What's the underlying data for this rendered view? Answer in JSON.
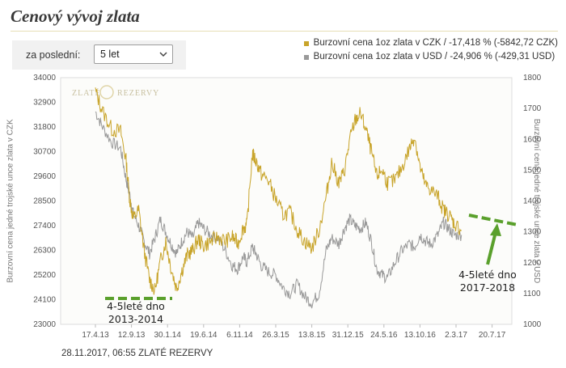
{
  "title": "Cenový vývoj zlata",
  "period": {
    "label": "za poslední:",
    "value": "5 let"
  },
  "legend": [
    {
      "text": "Burzovní cena 1oz zlata v CZK / -17,418 % (-5842,72 CZK)",
      "color": "#c8a42a"
    },
    {
      "text": "Burzovní cena 1oz zlata v USD / -24,906 % (-429,31 USD)",
      "color": "#999999"
    }
  ],
  "footer": "28.11.2017, 06:55 ZLATÉ REZERVY",
  "watermark": {
    "left": "ZLATÉ",
    "right": "REZERVY"
  },
  "colors": {
    "czk": "#c8a42a",
    "usd": "#999999",
    "annotation": "#5aa02c"
  },
  "chart_data": {
    "type": "line",
    "y_left_label": "Burzovní cena jedné trojské unce zlata v CZK",
    "y_right_label": "Burzovní cena jedné trojské unce zlata v USD",
    "y_left_ticks": [
      "34000",
      "32900",
      "31800",
      "30700",
      "29600",
      "28500",
      "27400",
      "26300",
      "25200",
      "24100",
      "23000"
    ],
    "y_right_ticks": [
      "1800",
      "1700",
      "1600",
      "1500",
      "1400",
      "1300",
      "1200",
      "1100",
      "1000"
    ],
    "x_ticks": [
      "17.4.13",
      "12.9.13",
      "30.1.14",
      "19.6.14",
      "6.11.14",
      "26.3.15",
      "13.8.15",
      "31.12.15",
      "24.5.16",
      "13.10.16",
      "2.3.17",
      "20.7.17"
    ],
    "ylim_left": [
      23000,
      34000
    ],
    "ylim_right": [
      1000,
      1800
    ],
    "series": [
      {
        "name": "Burzovní cena 1oz zlata v CZK",
        "axis": "left",
        "points": [
          [
            0,
            33400
          ],
          [
            0.2,
            32500
          ],
          [
            0.45,
            31700
          ],
          [
            0.7,
            31600
          ],
          [
            0.85,
            30300
          ],
          [
            0.95,
            28600
          ],
          [
            1.05,
            27700
          ],
          [
            1.2,
            28100
          ],
          [
            1.35,
            26300
          ],
          [
            1.5,
            25000
          ],
          [
            1.65,
            24500
          ],
          [
            1.8,
            25800
          ],
          [
            1.95,
            26700
          ],
          [
            2.1,
            25500
          ],
          [
            2.25,
            24600
          ],
          [
            2.4,
            25400
          ],
          [
            2.55,
            26100
          ],
          [
            2.7,
            26300
          ],
          [
            2.85,
            26800
          ],
          [
            3.0,
            26500
          ],
          [
            3.2,
            26700
          ],
          [
            3.4,
            26900
          ],
          [
            3.6,
            26700
          ],
          [
            3.8,
            26900
          ],
          [
            3.95,
            26600
          ],
          [
            4.1,
            27300
          ],
          [
            4.2,
            27400
          ],
          [
            4.35,
            30600
          ],
          [
            4.45,
            30300
          ],
          [
            4.6,
            29700
          ],
          [
            4.8,
            29400
          ],
          [
            5.0,
            28600
          ],
          [
            5.2,
            27900
          ],
          [
            5.4,
            28000
          ],
          [
            5.6,
            27200
          ],
          [
            5.8,
            26700
          ],
          [
            6.0,
            26400
          ],
          [
            6.2,
            27200
          ],
          [
            6.4,
            28700
          ],
          [
            6.55,
            30200
          ],
          [
            6.75,
            29300
          ],
          [
            6.9,
            29800
          ],
          [
            7.05,
            31200
          ],
          [
            7.2,
            32100
          ],
          [
            7.35,
            32400
          ],
          [
            7.5,
            31700
          ],
          [
            7.65,
            30700
          ],
          [
            7.8,
            29600
          ],
          [
            7.95,
            29900
          ],
          [
            8.1,
            29300
          ],
          [
            8.3,
            29400
          ],
          [
            8.5,
            30000
          ],
          [
            8.7,
            30800
          ],
          [
            8.85,
            31400
          ],
          [
            9.0,
            30000
          ],
          [
            9.15,
            29200
          ],
          [
            9.3,
            29000
          ],
          [
            9.5,
            28700
          ],
          [
            9.65,
            28100
          ],
          [
            9.8,
            27900
          ],
          [
            9.95,
            27500
          ],
          [
            10.15,
            27200
          ]
        ]
      },
      {
        "name": "Burzovní cena 1oz zlata v USD",
        "axis": "right",
        "points": [
          [
            0,
            1690
          ],
          [
            0.2,
            1640
          ],
          [
            0.45,
            1590
          ],
          [
            0.7,
            1570
          ],
          [
            0.85,
            1470
          ],
          [
            0.95,
            1420
          ],
          [
            1.05,
            1360
          ],
          [
            1.2,
            1320
          ],
          [
            1.35,
            1270
          ],
          [
            1.5,
            1230
          ],
          [
            1.65,
            1280
          ],
          [
            1.8,
            1340
          ],
          [
            1.95,
            1300
          ],
          [
            2.1,
            1260
          ],
          [
            2.25,
            1230
          ],
          [
            2.4,
            1270
          ],
          [
            2.55,
            1300
          ],
          [
            2.7,
            1280
          ],
          [
            2.85,
            1330
          ],
          [
            3.0,
            1310
          ],
          [
            3.2,
            1290
          ],
          [
            3.4,
            1280
          ],
          [
            3.6,
            1240
          ],
          [
            3.8,
            1190
          ],
          [
            3.95,
            1180
          ],
          [
            4.1,
            1220
          ],
          [
            4.2,
            1200
          ],
          [
            4.35,
            1250
          ],
          [
            4.45,
            1230
          ],
          [
            4.6,
            1190
          ],
          [
            4.8,
            1170
          ],
          [
            5.0,
            1160
          ],
          [
            5.2,
            1120
          ],
          [
            5.4,
            1100
          ],
          [
            5.6,
            1130
          ],
          [
            5.8,
            1090
          ],
          [
            6.0,
            1070
          ],
          [
            6.2,
            1100
          ],
          [
            6.4,
            1240
          ],
          [
            6.55,
            1280
          ],
          [
            6.75,
            1260
          ],
          [
            6.9,
            1310
          ],
          [
            7.05,
            1340
          ],
          [
            7.2,
            1320
          ],
          [
            7.35,
            1310
          ],
          [
            7.5,
            1330
          ],
          [
            7.65,
            1270
          ],
          [
            7.8,
            1180
          ],
          [
            7.95,
            1160
          ],
          [
            8.1,
            1150
          ],
          [
            8.3,
            1200
          ],
          [
            8.5,
            1240
          ],
          [
            8.7,
            1260
          ],
          [
            8.85,
            1250
          ],
          [
            9.0,
            1290
          ],
          [
            9.15,
            1270
          ],
          [
            9.3,
            1260
          ],
          [
            9.5,
            1290
          ],
          [
            9.65,
            1330
          ],
          [
            9.8,
            1310
          ],
          [
            9.95,
            1290
          ],
          [
            10.15,
            1290
          ]
        ]
      }
    ],
    "annotations": [
      {
        "text_lines": [
          "4-5leté dno",
          "2013-2014"
        ]
      },
      {
        "text_lines": [
          "4-5leté dno",
          "2017-2018"
        ]
      }
    ]
  }
}
